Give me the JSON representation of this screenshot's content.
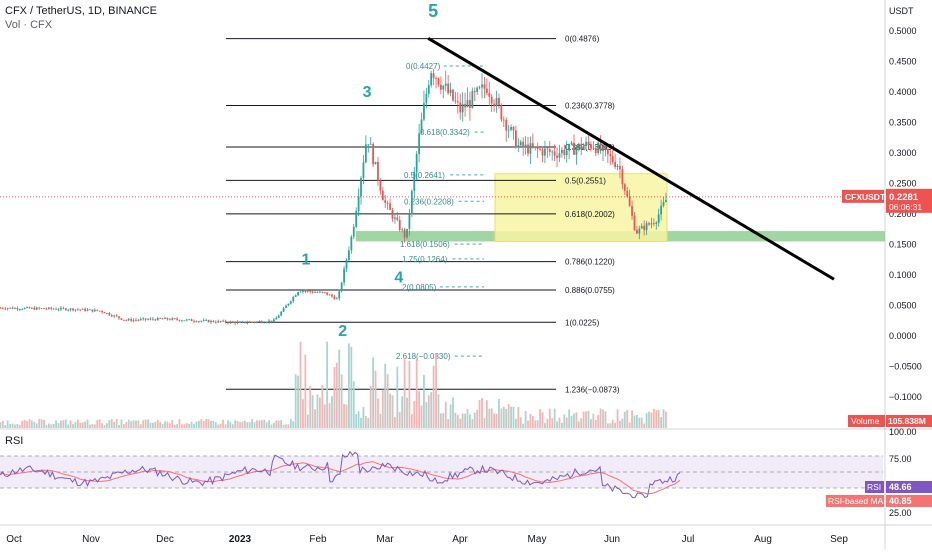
{
  "header": {
    "title": "CFX / TetherUS, 1D, BINANCE",
    "volume_label": "Vol · CFX"
  },
  "price_axis": {
    "unit": "USDT",
    "ticks": [
      "0.5000",
      "0.4500",
      "0.4000",
      "0.3500",
      "0.3000",
      "0.2500",
      "0.2000",
      "0.1500",
      "0.1000",
      "0.0500",
      "0.0000",
      "−0.0500",
      "−0.1000"
    ],
    "tick_values": [
      0.5,
      0.45,
      0.4,
      0.35,
      0.3,
      0.25,
      0.2,
      0.15,
      0.1,
      0.05,
      0.0,
      -0.05,
      -0.1
    ],
    "ylim": [
      -0.13,
      0.525
    ]
  },
  "x_axis": {
    "labels": [
      "Oct",
      "Nov",
      "Dec",
      "2023",
      "Feb",
      "Mar",
      "Apr",
      "May",
      "Jun",
      "Jul",
      "Aug",
      "Sep"
    ]
  },
  "badges": {
    "symbol_label": "CFXUSDT",
    "price": "0.2281",
    "countdown": "06:06:31",
    "volume_label": "Volume",
    "volume_value": "105.838M",
    "rsi_label": "RSI",
    "rsi_value": "48.66",
    "rsima_label": "RSI-based MA",
    "rsima_value": "40.85"
  },
  "rsi_axis": {
    "title": "RSI",
    "ticks": [
      "100.00",
      "75.00",
      "25.00"
    ]
  },
  "colors": {
    "up": "#26a69a",
    "down": "#ef5350",
    "wave_label": "#26a6a6",
    "fib_text": "#131722",
    "rsi_line": "#7e57c2",
    "rsi_ma": "#f57373",
    "rsi_band": "#ede7f6",
    "yellow_box": "#f7f5a3",
    "green_zone": "#81c784"
  },
  "chart_data": {
    "type": "candlestick",
    "title": "CFX / TetherUS, 1D, BINANCE",
    "ylabel": "USDT",
    "fib_levels_main": [
      {
        "label": "0(0.4876)",
        "value": 0.4876
      },
      {
        "label": "0.236(0.3778)",
        "value": 0.3778
      },
      {
        "label": "0.382(0.3099)",
        "value": 0.3099
      },
      {
        "label": "0.5(0.2551)",
        "value": 0.2551
      },
      {
        "label": "0.618(0.2002)",
        "value": 0.2002
      },
      {
        "label": "0.786(0.1220)",
        "value": 0.122
      },
      {
        "label": "0.886(0.0755)",
        "value": 0.0755
      },
      {
        "label": "1(0.0225)",
        "value": 0.0225
      },
      {
        "label": "1.236(−0.0873)",
        "value": -0.0873
      }
    ],
    "fib_levels_secondary": [
      {
        "label": "0(0.4427)",
        "value": 0.4427
      },
      {
        "label": "0.618(0.3342)",
        "value": 0.3342
      },
      {
        "label": "0.5(0.2641)",
        "value": 0.2641
      },
      {
        "label": "0.236(0.2208)",
        "value": 0.2208
      },
      {
        "label": "1.618(0.1506)",
        "value": 0.1506
      },
      {
        "label": "1.75(0.1264)",
        "value": 0.1264
      },
      {
        "label": "2(0.0805)",
        "value": 0.0805
      },
      {
        "label": "2.618(−0.0330)",
        "value": -0.033
      }
    ],
    "wave_labels": [
      {
        "label": "1",
        "date": "2023-01-28",
        "price": 0.117
      },
      {
        "label": "2",
        "date": "2023-02-12",
        "price": 0.0
      },
      {
        "label": "3",
        "date": "2023-02-22",
        "price": 0.392
      },
      {
        "label": "4",
        "date": "2023-03-07",
        "price": 0.088
      },
      {
        "label": "5",
        "date": "2023-03-21",
        "price": 0.523
      }
    ],
    "trendline": {
      "from": {
        "date": "2023-03-19",
        "price": 0.488
      },
      "to": {
        "date": "2023-09-01",
        "price": 0.093
      }
    },
    "support_zone": [
      0.155,
      0.172
    ],
    "current_price": 0.2281,
    "closes": [
      {
        "date": "2022-09-25",
        "close": 0.046
      },
      {
        "date": "2022-10-10",
        "close": 0.045
      },
      {
        "date": "2022-10-25",
        "close": 0.044
      },
      {
        "date": "2022-11-05",
        "close": 0.041
      },
      {
        "date": "2022-11-15",
        "close": 0.026
      },
      {
        "date": "2022-12-01",
        "close": 0.028
      },
      {
        "date": "2022-12-15",
        "close": 0.025
      },
      {
        "date": "2023-01-01",
        "close": 0.022
      },
      {
        "date": "2023-01-15",
        "close": 0.025
      },
      {
        "date": "2023-01-25",
        "close": 0.075
      },
      {
        "date": "2023-02-05",
        "close": 0.07
      },
      {
        "date": "2023-02-10",
        "close": 0.06
      },
      {
        "date": "2023-02-16",
        "close": 0.17
      },
      {
        "date": "2023-02-22",
        "close": 0.33
      },
      {
        "date": "2023-03-01",
        "close": 0.22
      },
      {
        "date": "2023-03-10",
        "close": 0.16
      },
      {
        "date": "2023-03-15",
        "close": 0.32
      },
      {
        "date": "2023-03-20",
        "close": 0.44
      },
      {
        "date": "2023-04-01",
        "close": 0.37
      },
      {
        "date": "2023-04-12",
        "close": 0.41
      },
      {
        "date": "2023-04-25",
        "close": 0.31
      },
      {
        "date": "2023-05-10",
        "close": 0.3
      },
      {
        "date": "2023-05-25",
        "close": 0.315
      },
      {
        "date": "2023-06-05",
        "close": 0.28
      },
      {
        "date": "2023-06-12",
        "close": 0.17
      },
      {
        "date": "2023-06-20",
        "close": 0.19
      },
      {
        "date": "2023-06-25",
        "close": 0.2281
      }
    ]
  }
}
